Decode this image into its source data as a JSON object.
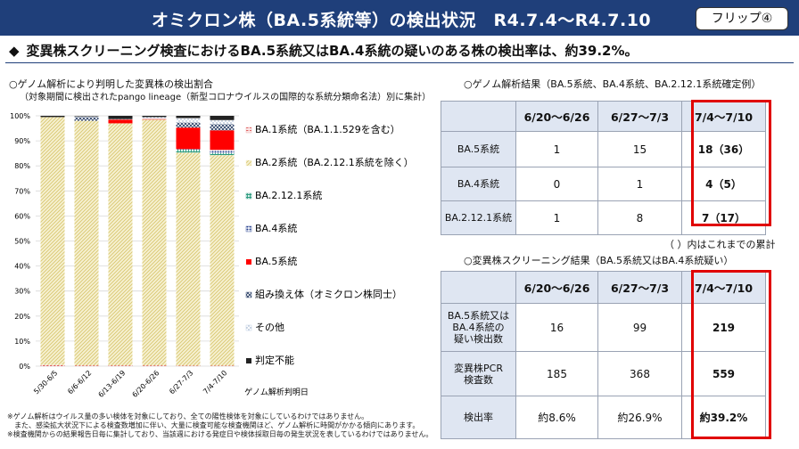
{
  "header": {
    "title": "オミクロン株（BA.5系統等）の検出状況　R4.7.4～R4.7.10",
    "flip_label": "フリップ④"
  },
  "headline": {
    "marker": "◆",
    "text": "変異株スクリーニング検査におけるBA.5系統又はBA.4系統の疑いのある株の検出率は、約39.2%。"
  },
  "colors": {
    "header_bg": "#1f3f7a",
    "highlight_border": "#e00000",
    "table_header_bg": "#dfe6f2"
  },
  "chart_data": {
    "type": "bar",
    "stacked": true,
    "title": "○ゲノム解析により判明した変異株の検出割合",
    "subtitle": "（対象期間に検出されたpango lineage（新型コロナウイルスの国際的な系統分類命名法）別に集計）",
    "xlabel": "ゲノム解析判明日",
    "ylabel": "",
    "ylim": [
      0,
      100
    ],
    "yticks": [
      "0%",
      "10%",
      "20%",
      "30%",
      "40%",
      "50%",
      "60%",
      "70%",
      "80%",
      "90%",
      "100%"
    ],
    "categories": [
      "5/30-6/5",
      "6/6-6/12",
      "6/13-6/19",
      "6/20-6/26",
      "6/27-7/3",
      "7/4-7/10"
    ],
    "legend_position": "right",
    "series": [
      {
        "name": "BA.1系統（BA.1.1.529を含む）",
        "color": "#e8a0a0",
        "pattern": "dash",
        "values": [
          0.5,
          0.3,
          0.3,
          0.3,
          0.2,
          0.2
        ]
      },
      {
        "name": "BA.2系統（BA.2.12.1系統を除く）",
        "color": "#f3ecc4",
        "pattern": "hatch",
        "values": [
          99.0,
          97.7,
          96.7,
          98.2,
          85.1,
          84.1
        ]
      },
      {
        "name": "BA.2.12.1系統",
        "color": "#2e9b80",
        "pattern": "grid",
        "values": [
          0.0,
          0.0,
          0.0,
          0.0,
          1.2,
          0.8
        ]
      },
      {
        "name": "BA.4系統",
        "color": "#1f3a8a",
        "pattern": "dots",
        "values": [
          0.0,
          0.0,
          0.0,
          0.0,
          0.2,
          1.3
        ]
      },
      {
        "name": "BA.5系統",
        "color": "#ff0000",
        "pattern": "solid",
        "values": [
          0.0,
          0.0,
          1.5,
          0.2,
          8.6,
          7.8
        ]
      },
      {
        "name": "組み換え体（オミクロン株同士）",
        "color": "#2a3f66",
        "pattern": "cross",
        "values": [
          0.0,
          1.5,
          0.0,
          0.0,
          2.0,
          2.5
        ]
      },
      {
        "name": "その他",
        "color": "#b0c4de",
        "pattern": "sparse",
        "values": [
          0.0,
          0.3,
          0.2,
          0.8,
          1.8,
          1.6
        ]
      },
      {
        "name": "判定不能",
        "color": "#222222",
        "pattern": "solid",
        "values": [
          0.5,
          0.2,
          1.3,
          0.5,
          0.9,
          1.7
        ]
      }
    ]
  },
  "notes": [
    "※ゲノム解析はウイルス量の多い検体を対象にしており、全ての陽性検体を対象にしているわけではありません。",
    "　また、感染拡大状況下による検査数増加に伴い、大量に検査可能な検査機関ほど、ゲノム解析に時間がかかる傾向にあります。",
    "※検査機関からの結果報告日毎に集計しており、当該週における発症日や検体採取日毎の発生状況を表しているわけではありません。"
  ],
  "genome_table": {
    "title": "○ゲノム解析結果（BA.5系統、BA.4系統、BA.2.12.1系統確定例）",
    "columns": [
      "",
      "6/20～6/26",
      "6/27～7/3",
      "7/4～7/10"
    ],
    "rows": [
      {
        "label": "BA.5系統",
        "c1": "1",
        "c2": "15",
        "c3": "18（36）"
      },
      {
        "label": "BA.4系統",
        "c1": "0",
        "c2": "1",
        "c3": "4（5）"
      },
      {
        "label": "BA.2.12.1系統",
        "c1": "1",
        "c2": "8",
        "c3": "7（17）"
      }
    ],
    "cumulative_note": "（ ）内はこれまでの累計"
  },
  "screening_table": {
    "title": "○変異株スクリーニング結果（BA.5系統又はBA.4系統疑い）",
    "columns": [
      "",
      "6/20～6/26",
      "6/27～7/3",
      "7/4～7/10"
    ],
    "rows": [
      {
        "label_lines": [
          "BA.5系統又は",
          "BA.4系統の",
          "疑い検出数"
        ],
        "c1": "16",
        "c2": "99",
        "c3": "219"
      },
      {
        "label_lines": [
          "変異株PCR",
          "検査数"
        ],
        "c1": "185",
        "c2": "368",
        "c3": "559"
      },
      {
        "label_lines": [
          "検出率"
        ],
        "c1": "約8.6%",
        "c2": "約26.9%",
        "c3": "約39.2%"
      }
    ]
  }
}
